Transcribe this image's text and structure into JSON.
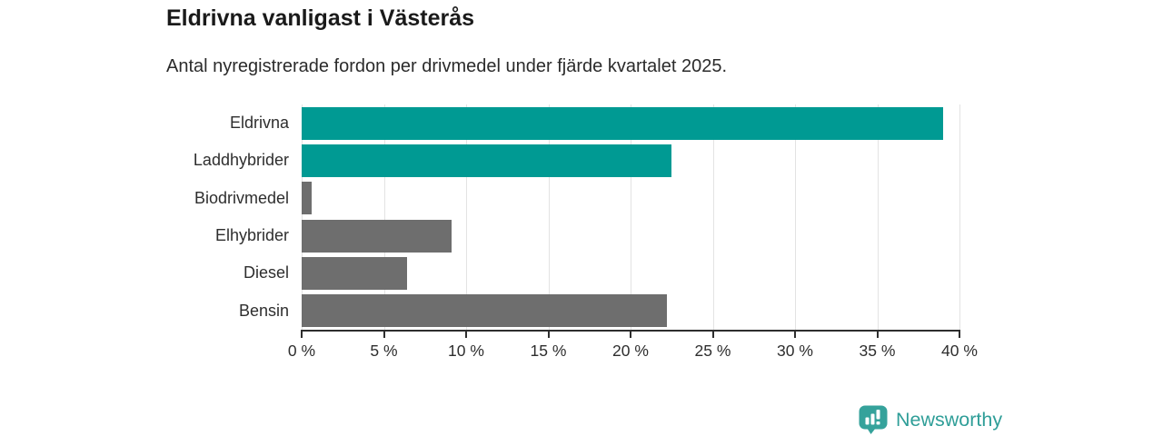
{
  "chart_data": {
    "type": "bar",
    "orientation": "horizontal",
    "title": "Eldrivna vanligast i Västerås",
    "subtitle": "Antal nyregistrerade fordon per drivmedel under fjärde kvartalet 2025.",
    "categories": [
      "Eldrivna",
      "Laddhybrider",
      "Biodrivmedel",
      "Elhybrider",
      "Diesel",
      "Bensin"
    ],
    "values": [
      39.0,
      22.5,
      0.6,
      9.1,
      6.4,
      22.2
    ],
    "unit": "%",
    "bar_colors": [
      "#009a93",
      "#009a93",
      "#6e6e6e",
      "#6e6e6e",
      "#6e6e6e",
      "#6e6e6e"
    ],
    "highlight_color": "#009a93",
    "default_color": "#6e6e6e",
    "xlim": [
      0,
      40
    ],
    "x_ticks": [
      0,
      5,
      10,
      15,
      20,
      25,
      30,
      35,
      40
    ],
    "x_tick_labels": [
      "0 %",
      "5 %",
      "10 %",
      "15 %",
      "20 %",
      "25 %",
      "30 %",
      "35 %",
      "40 %"
    ],
    "xlabel": "",
    "ylabel": "",
    "grid": "vertical",
    "gridline_color": "#e3e3e3",
    "axis_color": "#2e2e2e",
    "legend": "none"
  },
  "footer": {
    "brand": "Newsworthy",
    "brand_color": "#2f9e98",
    "logo_icon": "newsworthy-speech-bubble-barchart-icon"
  }
}
